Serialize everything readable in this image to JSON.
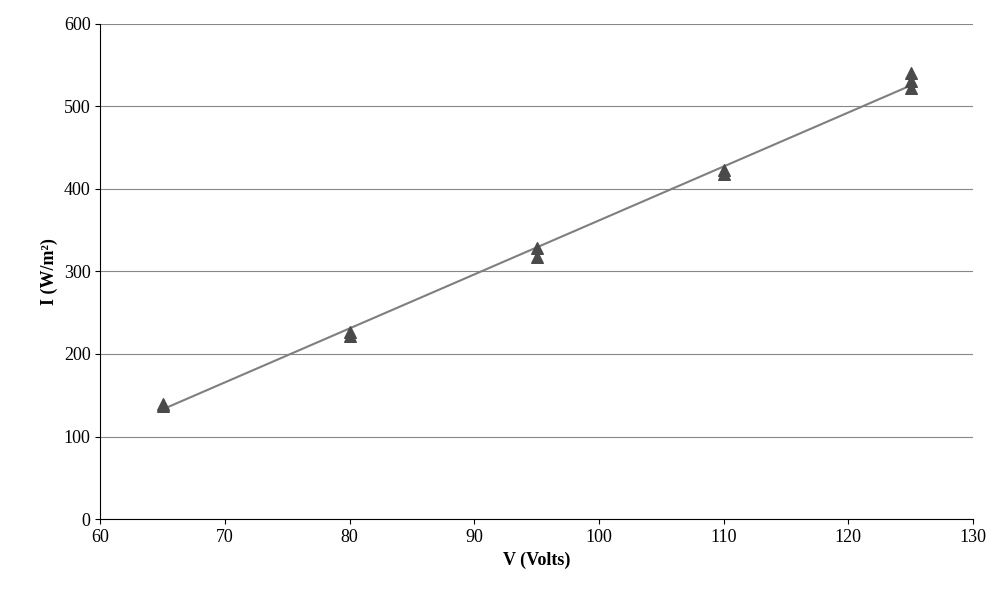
{
  "chart_data": {
    "type": "scatter",
    "x_label": "V (Volts)",
    "y_label": "I (W/m²)",
    "xlim": [
      60,
      130
    ],
    "xticks": [
      60,
      70,
      80,
      90,
      100,
      110,
      120,
      130
    ],
    "ylim": [
      0,
      600
    ],
    "yticks": [
      0,
      100,
      200,
      300,
      400,
      500,
      600
    ],
    "grid": "y",
    "series": [
      {
        "type": "scatter",
        "color": "#4a4a4a",
        "marker": "triangle",
        "x": [
          65,
          65,
          80,
          80,
          95,
          95,
          110,
          110,
          125,
          125,
          125
        ],
        "values": [
          137,
          139,
          222,
          227,
          318,
          328,
          418,
          423,
          522,
          531,
          540
        ]
      },
      {
        "type": "line",
        "color": "#7f7f7f",
        "line_style": "solid",
        "x": [
          65,
          125
        ],
        "values": [
          133,
          525
        ]
      }
    ]
  }
}
